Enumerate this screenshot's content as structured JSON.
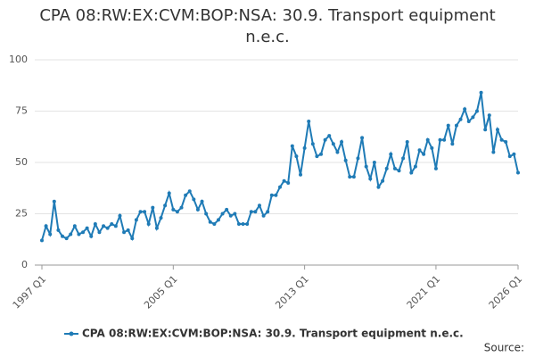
{
  "chart_data": {
    "type": "line",
    "title": "CPA 08:RW:EX:CVM:BOP:NSA: 30.9. Transport equipment n.e.c.",
    "source_label": "Source:",
    "categories": [
      "1997 Q1",
      null,
      null,
      null,
      null,
      null,
      null,
      null,
      null,
      null,
      null,
      null,
      null,
      null,
      null,
      null,
      null,
      null,
      null,
      null,
      null,
      null,
      null,
      null,
      null,
      null,
      null,
      null,
      null,
      null,
      null,
      null,
      "2005 Q1",
      null,
      null,
      null,
      null,
      null,
      null,
      null,
      null,
      null,
      null,
      null,
      null,
      null,
      null,
      null,
      null,
      null,
      null,
      null,
      null,
      null,
      null,
      null,
      null,
      null,
      null,
      null,
      null,
      null,
      null,
      null,
      "2013 Q1",
      null,
      null,
      null,
      null,
      null,
      null,
      null,
      null,
      null,
      null,
      null,
      null,
      null,
      null,
      null,
      null,
      null,
      null,
      null,
      null,
      null,
      null,
      null,
      null,
      null,
      null,
      null,
      null,
      null,
      null,
      null,
      "2021 Q1",
      null,
      null,
      null,
      null,
      null,
      null,
      null,
      null,
      null,
      null,
      null,
      null,
      null,
      null,
      null,
      null,
      null,
      null,
      null,
      "2026 Q1"
    ],
    "series": [
      {
        "name": "CPA 08:RW:EX:CVM:BOP:NSA: 30.9. Transport equipment n.e.c.",
        "color": "#1f7bb6",
        "values": [
          12,
          19,
          15,
          31,
          17,
          14,
          13,
          15,
          19,
          15,
          16,
          18,
          14,
          20,
          16,
          19,
          18,
          20,
          19,
          24,
          16,
          17,
          13,
          22,
          26,
          26,
          20,
          28,
          18,
          23,
          29,
          35,
          27,
          26,
          28,
          34,
          36,
          32,
          27,
          31,
          25,
          21,
          20,
          22,
          25,
          27,
          24,
          25,
          20,
          20,
          20,
          26,
          26,
          29,
          24,
          26,
          34,
          34,
          38,
          41,
          40,
          58,
          53,
          44,
          57,
          70,
          59,
          53,
          54,
          61,
          63,
          59,
          55,
          60,
          51,
          43,
          43,
          52,
          62,
          48,
          42,
          50,
          38,
          41,
          47,
          54,
          47,
          46,
          52,
          60,
          45,
          48,
          56,
          54,
          61,
          57,
          47,
          61,
          61,
          68,
          59,
          68,
          71,
          76,
          70,
          72,
          75,
          84,
          66,
          73,
          55,
          66,
          61,
          60,
          53,
          54,
          45
        ]
      }
    ],
    "ylim": [
      0,
      100
    ],
    "yticks": [
      0,
      25,
      50,
      75,
      100
    ],
    "grid": true
  }
}
